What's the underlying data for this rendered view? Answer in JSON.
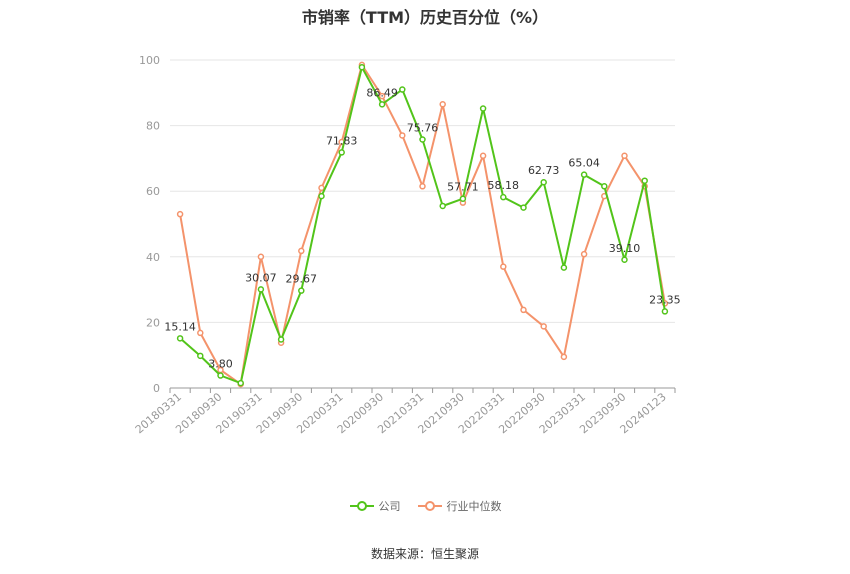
{
  "chart_data": {
    "type": "line",
    "title": "市销率（TTM）历史百分位（%）",
    "ylim": [
      0,
      100
    ],
    "yticks": [
      0,
      20,
      40,
      60,
      80,
      100
    ],
    "grid": true,
    "legend_position": "bottom-center",
    "x_tick_labels": [
      "20180331",
      "20180930",
      "20190331",
      "20190930",
      "20200331",
      "20200930",
      "20210331",
      "20210930",
      "20220331",
      "20220930",
      "20230331",
      "20230930",
      "20240123"
    ],
    "series": [
      {
        "name": "公司",
        "color": "#52c41a",
        "values": [
          15.14,
          9.8,
          3.8,
          1.5,
          30.07,
          14.8,
          29.67,
          58.5,
          71.83,
          97.8,
          86.49,
          91.0,
          75.76,
          55.5,
          57.71,
          85.2,
          58.18,
          55.0,
          62.73,
          36.7,
          65.04,
          61.5,
          39.1,
          63.2,
          23.35
        ],
        "labels": {
          "0": "15.14",
          "2": "3.80",
          "4": "30.07",
          "6": "29.67",
          "8": "71.83",
          "10": "86.49",
          "12": "75.76",
          "14": "57.71",
          "16": "58.18",
          "18": "62.73",
          "20": "65.04",
          "22": "39.10",
          "24": "23.35"
        }
      },
      {
        "name": "行业中位数",
        "color": "#f4936b",
        "values": [
          53.0,
          16.8,
          5.5,
          1.2,
          40.0,
          13.8,
          41.8,
          61.0,
          75.0,
          98.5,
          89.0,
          77.0,
          61.5,
          86.5,
          56.5,
          70.8,
          37.0,
          23.8,
          18.8,
          9.5,
          40.8,
          58.5,
          70.8,
          61.5,
          25.8
        ]
      }
    ]
  },
  "source": "数据来源：恒生聚源"
}
